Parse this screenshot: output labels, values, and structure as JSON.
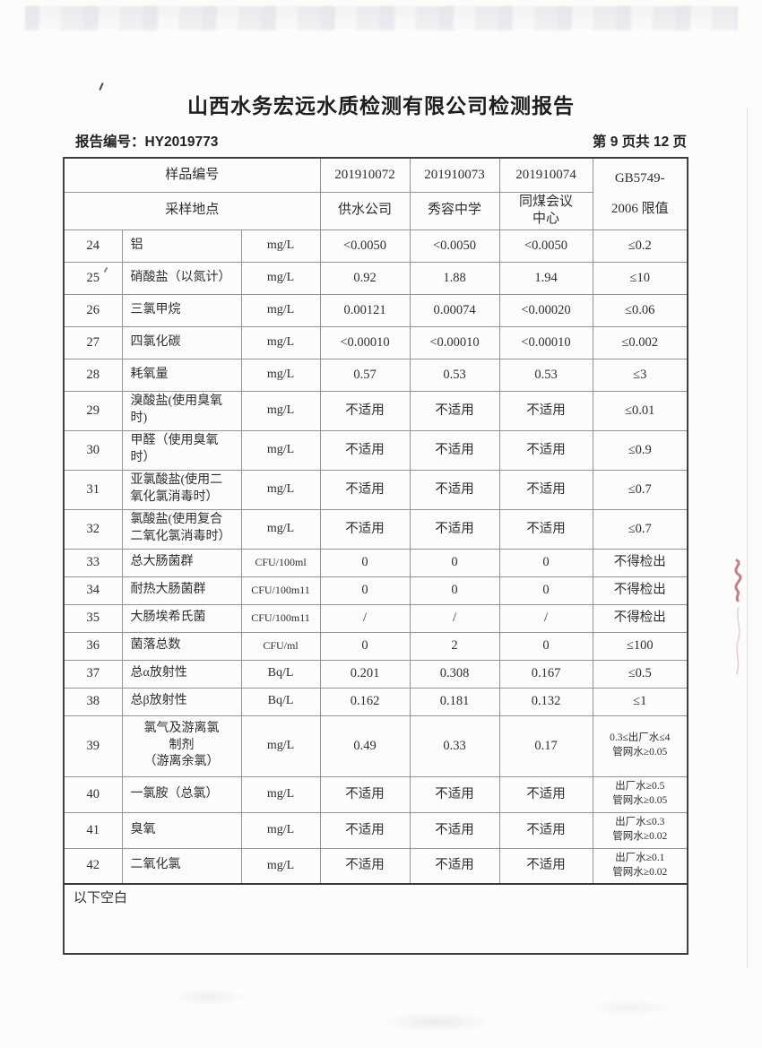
{
  "page": {
    "title": "山西水务宏远水质检测有限公司检测报告",
    "report_no_label": "报告编号：",
    "report_no": "HY2019773",
    "page_info": "第 9 页共 12 页"
  },
  "table": {
    "header": {
      "sample_id_label": "样品编号",
      "location_label": "采样地点",
      "sample_ids": [
        "201910072",
        "201910073",
        "201910074"
      ],
      "locations": [
        "供水公司",
        "秀容中学",
        "同煤会议\n中心"
      ],
      "limit_label": "GB5749-\n2006 限值"
    },
    "rows": [
      {
        "no": "24",
        "name": "铝",
        "unit": "mg/L",
        "v1": "<0.0050",
        "v2": "<0.0050",
        "v3": "<0.0050",
        "limit": "≤0.2"
      },
      {
        "no": "25",
        "name": "硝酸盐（以氮计）",
        "unit": "mg/L",
        "v1": "0.92",
        "v2": "1.88",
        "v3": "1.94",
        "limit": "≤10"
      },
      {
        "no": "26",
        "name": "三氯甲烷",
        "unit": "mg/L",
        "v1": "0.00121",
        "v2": "0.00074",
        "v3": "<0.00020",
        "limit": "≤0.06"
      },
      {
        "no": "27",
        "name": "四氯化碳",
        "unit": "mg/L",
        "v1": "<0.00010",
        "v2": "<0.00010",
        "v3": "<0.00010",
        "limit": "≤0.002"
      },
      {
        "no": "28",
        "name": "耗氧量",
        "unit": "mg/L",
        "v1": "0.57",
        "v2": "0.53",
        "v3": "0.53",
        "limit": "≤3"
      },
      {
        "no": "29",
        "name": "溴酸盐(使用臭氧时)",
        "unit": "mg/L",
        "v1": "不适用",
        "v2": "不适用",
        "v3": "不适用",
        "limit": "≤0.01"
      },
      {
        "no": "30",
        "name": "甲醛（使用臭氧时）",
        "unit": "mg/L",
        "v1": "不适用",
        "v2": "不适用",
        "v3": "不适用",
        "limit": "≤0.9"
      },
      {
        "no": "31",
        "name": "亚氯酸盐(使用二氧化氯消毒时）",
        "unit": "mg/L",
        "v1": "不适用",
        "v2": "不适用",
        "v3": "不适用",
        "limit": "≤0.7"
      },
      {
        "no": "32",
        "name": "氯酸盐(使用复合二氧化氯消毒时）",
        "unit": "mg/L",
        "v1": "不适用",
        "v2": "不适用",
        "v3": "不适用",
        "limit": "≤0.7"
      },
      {
        "no": "33",
        "name": "总大肠菌群",
        "unit": "CFU/100ml",
        "v1": "0",
        "v2": "0",
        "v3": "0",
        "limit": "不得检出"
      },
      {
        "no": "34",
        "name": "耐热大肠菌群",
        "unit": "CFU/100m11",
        "v1": "0",
        "v2": "0",
        "v3": "0",
        "limit": "不得检出"
      },
      {
        "no": "35",
        "name": "大肠埃希氏菌",
        "unit": "CFU/100m11",
        "v1": "/",
        "v2": "/",
        "v3": "/",
        "limit": "不得检出"
      },
      {
        "no": "36",
        "name": "菌落总数",
        "unit": "CFU/ml",
        "v1": "0",
        "v2": "2",
        "v3": "0",
        "limit": "≤100"
      },
      {
        "no": "37",
        "name": "总α放射性",
        "unit": "Bq/L",
        "v1": "0.201",
        "v2": "0.308",
        "v3": "0.167",
        "limit": "≤0.5"
      },
      {
        "no": "38",
        "name": "总β放射性",
        "unit": "Bq/L",
        "v1": "0.162",
        "v2": "0.181",
        "v3": "0.132",
        "limit": "≤1"
      },
      {
        "no": "39",
        "name": "氯气及游离氯\n制剂\n（游离余氯）",
        "unit": "mg/L",
        "v1": "0.49",
        "v2": "0.33",
        "v3": "0.17",
        "limit": "0.3≤出厂水≤4",
        "limit2": "管网水≥0.05"
      },
      {
        "no": "40",
        "name": "一氯胺（总氯）",
        "unit": "mg/L",
        "v1": "不适用",
        "v2": "不适用",
        "v3": "不适用",
        "limit": "出厂水≥0.5",
        "limit2": "管网水≥0.05"
      },
      {
        "no": "41",
        "name": "臭氧",
        "unit": "mg/L",
        "v1": "不适用",
        "v2": "不适用",
        "v3": "不适用",
        "limit": "出厂水≤0.3",
        "limit2": "管网水≥0.02"
      },
      {
        "no": "42",
        "name": "二氧化氯",
        "unit": "mg/L",
        "v1": "不适用",
        "v2": "不适用",
        "v3": "不适用",
        "limit": "出厂水≥0.1",
        "limit2": "管网水≥0.02"
      }
    ],
    "footer_note": "以下空白"
  },
  "artifacts": {
    "stamp_color": "#b04a58"
  }
}
